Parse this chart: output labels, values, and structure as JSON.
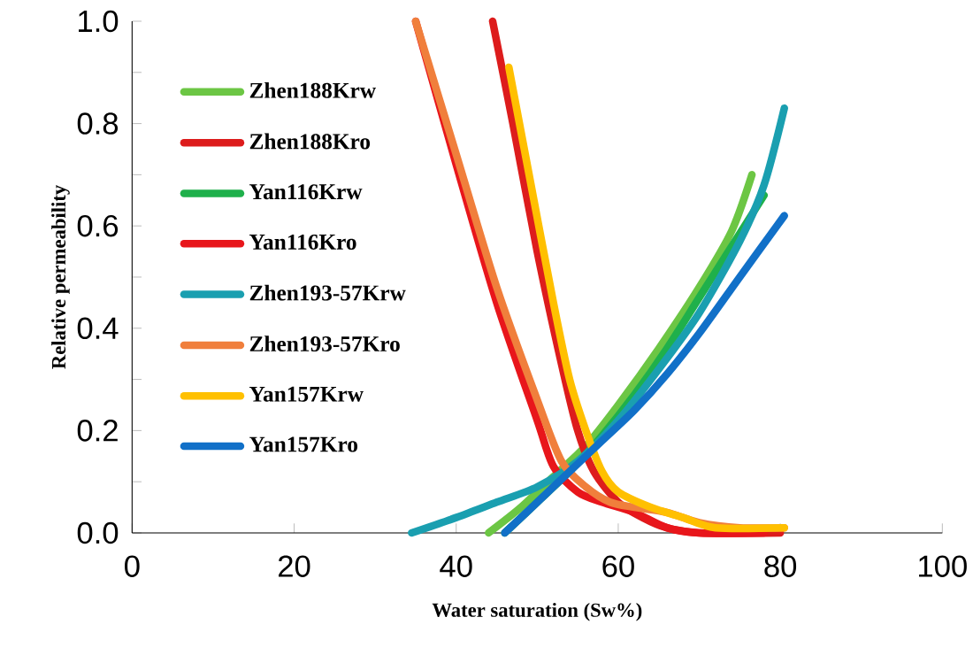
{
  "chart_data": {
    "type": "line",
    "xlabel": "Water saturation (Sw%)",
    "ylabel": "Relative permeability",
    "xlim": [
      0,
      100
    ],
    "ylim": [
      0,
      1
    ],
    "xticks": [
      0,
      20,
      40,
      60,
      80,
      100
    ],
    "yticks": [
      {
        "value": 0,
        "label": "0.0"
      },
      {
        "value": 0.1,
        "label": null
      },
      {
        "value": 0.2,
        "label": "0.2"
      },
      {
        "value": 0.3,
        "label": null
      },
      {
        "value": 0.4,
        "label": "0.4"
      },
      {
        "value": 0.5,
        "label": null
      },
      {
        "value": 0.6,
        "label": "0.6"
      },
      {
        "value": 0.7,
        "label": null
      },
      {
        "value": 0.8,
        "label": "0.8"
      },
      {
        "value": 0.9,
        "label": null
      },
      {
        "value": 1.0,
        "label": "1.0"
      }
    ],
    "legend": "top left",
    "marker": "none",
    "line_style": "solid",
    "series": [
      {
        "name": "Zhen188Krw",
        "color": "#6cc644",
        "x": [
          44,
          48,
          52,
          56,
          60,
          65,
          70,
          74,
          76.5
        ],
        "values": [
          0,
          0.05,
          0.11,
          0.17,
          0.25,
          0.36,
          0.48,
          0.59,
          0.7
        ]
      },
      {
        "name": "Zhen188Kro",
        "color": "#dd1c1c",
        "x": [
          44.5,
          47,
          50,
          53,
          55,
          57,
          60,
          63,
          66,
          70,
          80
        ],
        "values": [
          1.0,
          0.8,
          0.55,
          0.33,
          0.2,
          0.12,
          0.06,
          0.03,
          0.01,
          0,
          0
        ]
      },
      {
        "name": "Yan116Krw",
        "color": "#1fb04b",
        "x": [
          46,
          50,
          54,
          58,
          62,
          66,
          70,
          74,
          78
        ],
        "values": [
          0,
          0.06,
          0.12,
          0.19,
          0.27,
          0.36,
          0.46,
          0.56,
          0.66
        ]
      },
      {
        "name": "Yan116Kro",
        "color": "#e8161b",
        "x": [
          35,
          40,
          45,
          50,
          52,
          55,
          58,
          62,
          66,
          70,
          78
        ],
        "values": [
          1.0,
          0.72,
          0.45,
          0.22,
          0.13,
          0.08,
          0.06,
          0.04,
          0.01,
          0,
          0
        ]
      },
      {
        "name": "Zhen193-57Krw",
        "color": "#1a9fb0",
        "x": [
          34.5,
          40,
          45,
          50,
          55,
          60,
          65,
          70,
          75,
          78,
          80.5
        ],
        "values": [
          0,
          0.03,
          0.06,
          0.09,
          0.14,
          0.22,
          0.32,
          0.43,
          0.57,
          0.68,
          0.83
        ]
      },
      {
        "name": "Zhen193-57Kro",
        "color": "#f07f3c",
        "x": [
          35,
          40,
          45,
          50,
          53,
          56,
          59,
          62,
          66,
          70,
          75,
          80.5
        ],
        "values": [
          1.0,
          0.74,
          0.48,
          0.26,
          0.14,
          0.09,
          0.06,
          0.05,
          0.04,
          0.02,
          0.01,
          0.01
        ]
      },
      {
        "name": "Yan157Krw",
        "color": "#ffc000",
        "x": [
          46.5,
          49,
          52,
          54,
          56,
          58,
          60,
          64,
          68,
          72,
          80.5
        ],
        "values": [
          0.91,
          0.7,
          0.45,
          0.3,
          0.2,
          0.12,
          0.08,
          0.05,
          0.03,
          0.01,
          0.01
        ]
      },
      {
        "name": "Yan157Kro",
        "color": "#1170c8",
        "x": [
          46,
          50,
          54,
          58,
          62,
          66,
          70,
          75,
          80.5
        ],
        "values": [
          0,
          0.06,
          0.12,
          0.18,
          0.24,
          0.31,
          0.39,
          0.5,
          0.62
        ]
      }
    ]
  }
}
